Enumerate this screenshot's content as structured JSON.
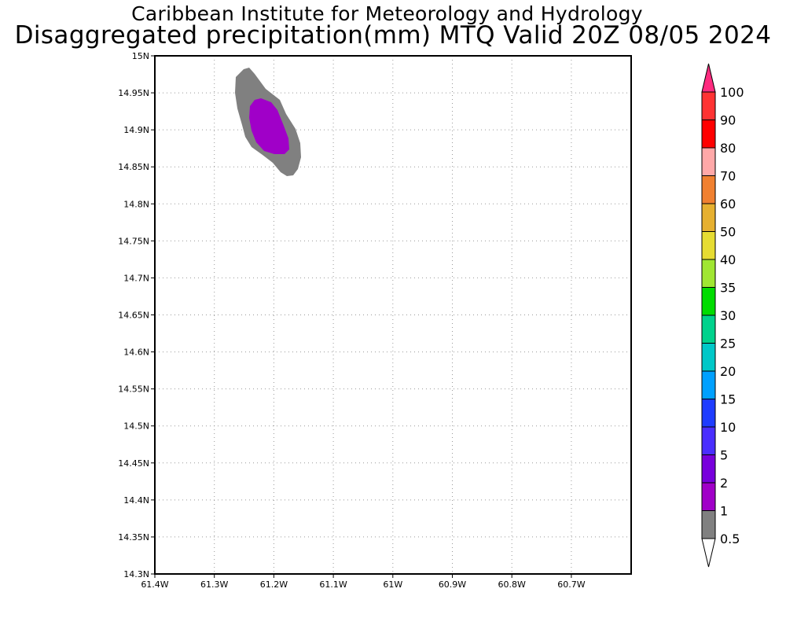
{
  "title_line1": "Caribbean Institute for Meteorology and Hydrology",
  "title_line2": "Disaggregated precipitation(mm) MTQ Valid 20Z 08/05 2024",
  "lat_ticks": [
    "15N",
    "14.95N",
    "14.9N",
    "14.85N",
    "14.8N",
    "14.75N",
    "14.7N",
    "14.65N",
    "14.6N",
    "14.55N",
    "14.5N",
    "14.45N",
    "14.4N",
    "14.35N",
    "14.3N"
  ],
  "lon_ticks": [
    "61.4W",
    "61.3W",
    "61.2W",
    "61.1W",
    "61W",
    "60.9W",
    "60.8W",
    "60.7W"
  ],
  "colorbar": {
    "labels": [
      "100",
      "90",
      "80",
      "70",
      "60",
      "50",
      "40",
      "35",
      "30",
      "25",
      "20",
      "15",
      "10",
      "5",
      "2",
      "1",
      "0.5"
    ],
    "colors": [
      "#ff2b7f",
      "#ff3333",
      "#ff0000",
      "#ffa8a8",
      "#f08030",
      "#e6b030",
      "#e6dc32",
      "#a0e632",
      "#00dc00",
      "#00d28c",
      "#00c8c8",
      "#00a0ff",
      "#1e3cff",
      "#4a2eff",
      "#7800dc",
      "#a000c8",
      "#808080"
    ]
  },
  "precip_areas": [
    {
      "threshold": "0.5",
      "color": "#808080"
    },
    {
      "threshold": "1",
      "color": "#a000c8"
    }
  ]
}
